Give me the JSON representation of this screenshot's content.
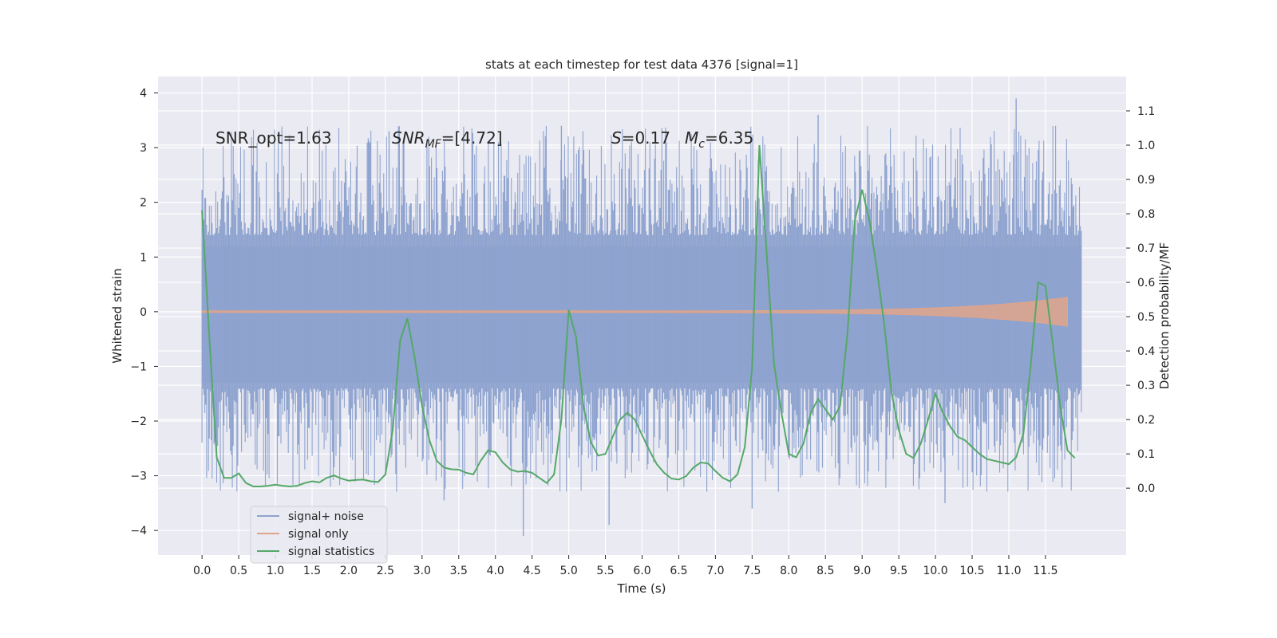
{
  "chart_data": {
    "type": "line",
    "title": "stats at each timestep for test data 4376 [signal=1]",
    "xlabel": "Time (s)",
    "ylabel_left": "Whitened strain",
    "ylabel_right": "Detection probability/MF",
    "xlim": [
      -0.6,
      12.6
    ],
    "ylim_left": [
      -4.45,
      4.3
    ],
    "ylim_right": [
      -0.195,
      1.2
    ],
    "x_ticks": [
      0.0,
      0.5,
      1.0,
      1.5,
      2.0,
      2.5,
      3.0,
      3.5,
      4.0,
      4.5,
      5.0,
      5.5,
      6.0,
      6.5,
      7.0,
      7.5,
      8.0,
      8.5,
      9.0,
      9.5,
      10.0,
      10.5,
      11.0,
      11.5
    ],
    "x_tick_labels": [
      "0.0",
      "0.5",
      "1.0",
      "1.5",
      "2.0",
      "2.5",
      "3.0",
      "3.5",
      "4.0",
      "4.5",
      "5.0",
      "5.5",
      "6.0",
      "6.5",
      "7.0",
      "7.5",
      "8.0",
      "8.5",
      "9.0",
      "9.5",
      "10.0",
      "10.5",
      "11.0",
      "11.5"
    ],
    "y_left_ticks": [
      -4,
      -3,
      -2,
      -1,
      0,
      1,
      2,
      3,
      4
    ],
    "y_left_tick_labels": [
      "−4",
      "−3",
      "−2",
      "−1",
      "0",
      "1",
      "2",
      "3",
      "4"
    ],
    "y_right_ticks": [
      0.0,
      0.1,
      0.2,
      0.3,
      0.4,
      0.5,
      0.6,
      0.7,
      0.8,
      0.9,
      1.0,
      1.1
    ],
    "y_right_tick_labels": [
      "0.0",
      "0.1",
      "0.2",
      "0.3",
      "0.4",
      "0.5",
      "0.6",
      "0.7",
      "0.8",
      "0.9",
      "1.0",
      "1.1"
    ],
    "grid": true,
    "legend_position": "lower-left",
    "annotations": {
      "snr_opt": "SNR_opt=1.63",
      "snr_mf_main": "SNR",
      "snr_mf_sub": "MF",
      "snr_mf_value": "=[4.72]",
      "s_main": "S",
      "s_value": "=0.17",
      "mc_main": "M",
      "mc_sub": "c",
      "mc_value": "=6.35"
    },
    "noise_band": {
      "t_range": [
        0.0,
        11.99
      ],
      "dense_band": [
        -1.3,
        1.2
      ],
      "note_max": 3.9,
      "note_min": -4.1
    },
    "signal_only": {
      "t_range": [
        0.0,
        11.8
      ],
      "final_envelope": 0.25
    },
    "series": [
      {
        "name": "signal+ noise",
        "color": "#8ea3cf",
        "axis": "left"
      },
      {
        "name": "signal only",
        "color": "#e1a48a",
        "axis": "left"
      },
      {
        "name": "signal statistics",
        "color": "#55a868",
        "axis": "right",
        "x": [
          0.0,
          0.1,
          0.2,
          0.3,
          0.4,
          0.5,
          0.6,
          0.7,
          0.8,
          0.9,
          1.0,
          1.1,
          1.2,
          1.3,
          1.4,
          1.5,
          1.6,
          1.7,
          1.8,
          1.9,
          2.0,
          2.1,
          2.2,
          2.3,
          2.4,
          2.5,
          2.6,
          2.7,
          2.8,
          2.9,
          3.0,
          3.1,
          3.2,
          3.3,
          3.4,
          3.5,
          3.6,
          3.7,
          3.8,
          3.9,
          4.0,
          4.1,
          4.2,
          4.3,
          4.4,
          4.5,
          4.6,
          4.7,
          4.8,
          4.9,
          5.0,
          5.1,
          5.2,
          5.3,
          5.4,
          5.5,
          5.6,
          5.7,
          5.8,
          5.9,
          6.0,
          6.1,
          6.2,
          6.3,
          6.4,
          6.5,
          6.6,
          6.7,
          6.8,
          6.9,
          7.0,
          7.1,
          7.2,
          7.3,
          7.4,
          7.5,
          7.6,
          7.7,
          7.8,
          7.9,
          8.0,
          8.1,
          8.2,
          8.3,
          8.4,
          8.5,
          8.6,
          8.7,
          8.8,
          8.9,
          9.0,
          9.1,
          9.2,
          9.3,
          9.4,
          9.5,
          9.6,
          9.7,
          9.8,
          9.9,
          10.0,
          10.1,
          10.2,
          10.3,
          10.4,
          10.5,
          10.6,
          10.7,
          10.8,
          10.9,
          11.0,
          11.1,
          11.2,
          11.3,
          11.4,
          11.5,
          11.6,
          11.7,
          11.8,
          11.9
        ],
        "values": [
          0.81,
          0.44,
          0.09,
          0.03,
          0.03,
          0.043,
          0.015,
          0.005,
          0.005,
          0.007,
          0.01,
          0.007,
          0.005,
          0.007,
          0.015,
          0.02,
          0.017,
          0.03,
          0.037,
          0.028,
          0.022,
          0.024,
          0.025,
          0.02,
          0.018,
          0.04,
          0.17,
          0.43,
          0.495,
          0.38,
          0.24,
          0.14,
          0.08,
          0.06,
          0.055,
          0.054,
          0.045,
          0.04,
          0.08,
          0.11,
          0.105,
          0.075,
          0.055,
          0.048,
          0.05,
          0.045,
          0.03,
          0.015,
          0.04,
          0.2,
          0.52,
          0.44,
          0.24,
          0.135,
          0.095,
          0.1,
          0.15,
          0.2,
          0.22,
          0.2,
          0.155,
          0.11,
          0.07,
          0.045,
          0.028,
          0.025,
          0.035,
          0.06,
          0.075,
          0.072,
          0.05,
          0.03,
          0.02,
          0.04,
          0.12,
          0.35,
          1.0,
          0.68,
          0.36,
          0.22,
          0.1,
          0.09,
          0.13,
          0.22,
          0.26,
          0.23,
          0.2,
          0.24,
          0.45,
          0.78,
          0.87,
          0.78,
          0.64,
          0.48,
          0.28,
          0.17,
          0.1,
          0.088,
          0.13,
          0.2,
          0.275,
          0.22,
          0.18,
          0.15,
          0.14,
          0.12,
          0.1,
          0.085,
          0.08,
          0.075,
          0.07,
          0.09,
          0.16,
          0.36,
          0.6,
          0.59,
          0.42,
          0.24,
          0.11,
          0.088
        ]
      }
    ]
  }
}
